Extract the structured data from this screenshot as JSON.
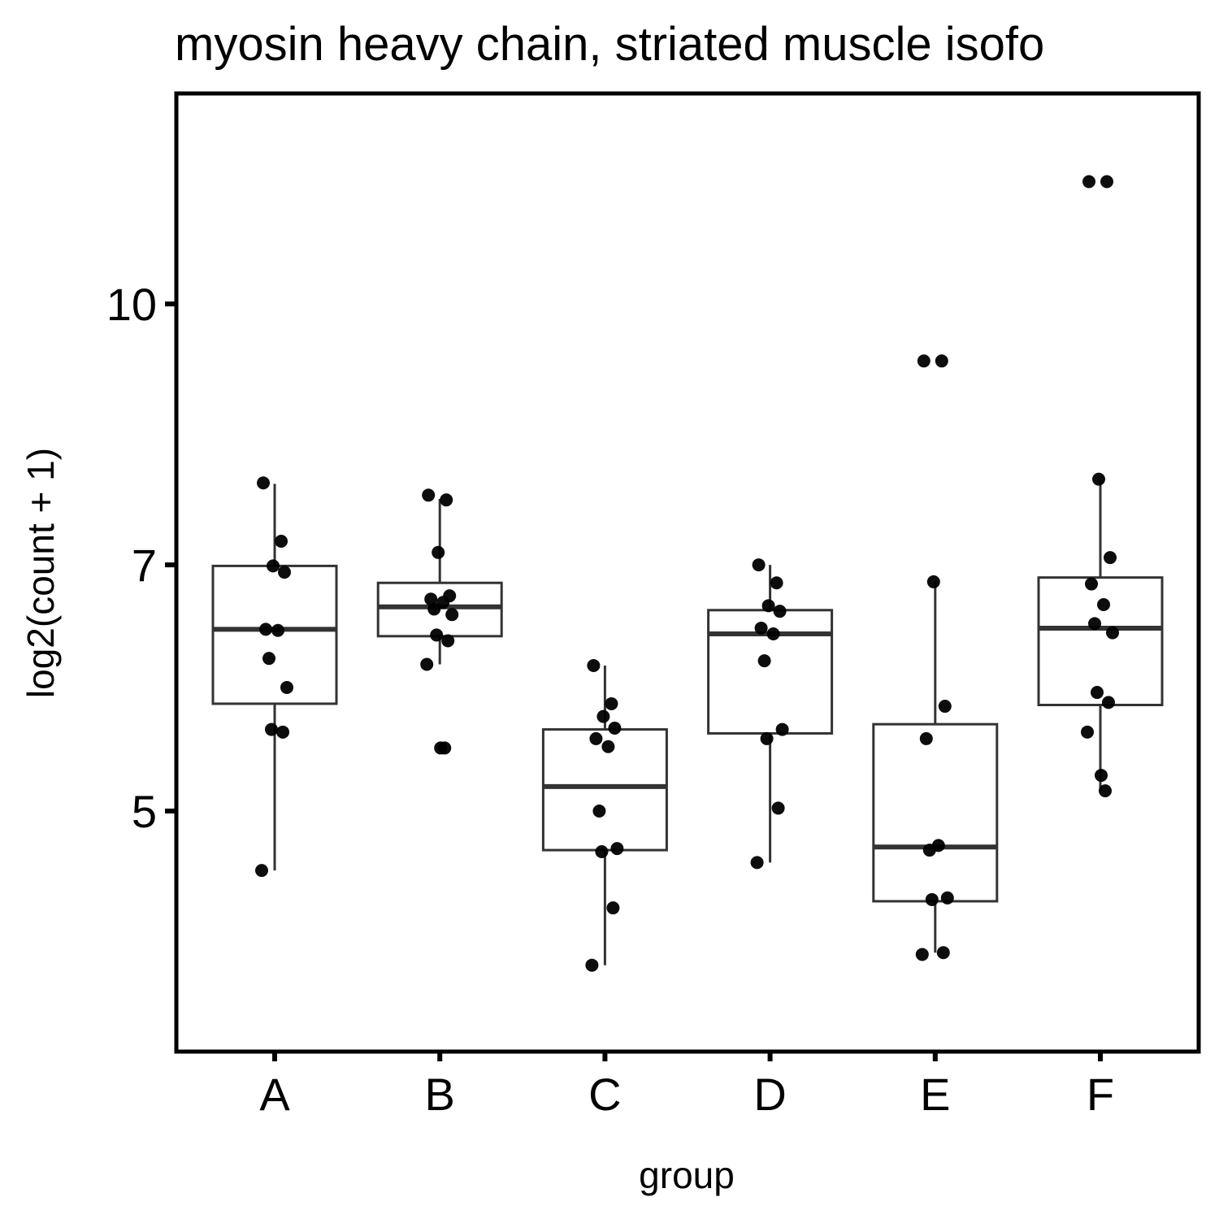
{
  "chart_data": {
    "type": "boxplot",
    "title": "myosin heavy chain, striated muscle isofo",
    "xlabel": "group",
    "ylabel": "log2(count + 1)",
    "log_scale": "y (log-spaced axis)",
    "yticks": [
      5,
      7,
      10
    ],
    "ylim": [
      3.9,
      12.3
    ],
    "grid": false,
    "categories": [
      "A",
      "B",
      "C",
      "D",
      "E",
      "F"
    ],
    "boxes": [
      {
        "group": "A",
        "whisker_low": 4.61,
        "q1": 5.79,
        "median": 6.41,
        "q3": 6.99,
        "whisker_high": 7.82
      },
      {
        "group": "B",
        "whisker_low": 6.11,
        "q1": 6.35,
        "median": 6.61,
        "q3": 6.83,
        "whisker_high": 7.66
      },
      {
        "group": "C",
        "whisker_low": 4.05,
        "q1": 4.74,
        "median": 5.17,
        "q3": 5.59,
        "whisker_high": 6.1
      },
      {
        "group": "D",
        "whisker_low": 4.66,
        "q1": 5.56,
        "median": 6.37,
        "q3": 6.58,
        "whisker_high": 7.0
      },
      {
        "group": "E",
        "whisker_low": 4.12,
        "q1": 4.42,
        "median": 4.76,
        "q3": 5.63,
        "whisker_high": 6.84
      },
      {
        "group": "F",
        "whisker_low": 5.14,
        "q1": 5.78,
        "median": 6.42,
        "q3": 6.88,
        "whisker_high": 7.86
      }
    ],
    "points": [
      {
        "group": "A",
        "values": [
          7.83,
          7.23,
          6.99,
          6.93,
          6.41,
          6.4,
          6.16,
          5.92,
          5.59,
          5.57,
          4.61
        ]
      },
      {
        "group": "B",
        "values": [
          7.7,
          7.65,
          7.12,
          6.71,
          6.68,
          6.65,
          6.59,
          6.54,
          6.36,
          6.31,
          6.11,
          5.45,
          5.45
        ]
      },
      {
        "group": "C",
        "values": [
          6.1,
          5.79,
          5.69,
          5.6,
          5.52,
          5.46,
          5.0,
          4.75,
          4.73,
          4.38,
          4.05
        ]
      },
      {
        "group": "D",
        "values": [
          7.0,
          6.83,
          6.62,
          6.57,
          6.42,
          6.37,
          6.14,
          5.59,
          5.52,
          5.02,
          4.66
        ]
      },
      {
        "group": "E",
        "values": [
          9.25,
          9.25,
          6.84,
          5.77,
          5.52,
          4.77,
          4.74,
          4.44,
          4.43,
          4.12,
          4.11
        ]
      },
      {
        "group": "F",
        "values": [
          11.82,
          11.82,
          7.87,
          7.07,
          6.82,
          6.63,
          6.46,
          6.38,
          5.88,
          5.8,
          5.57,
          5.25,
          5.14
        ]
      }
    ]
  }
}
